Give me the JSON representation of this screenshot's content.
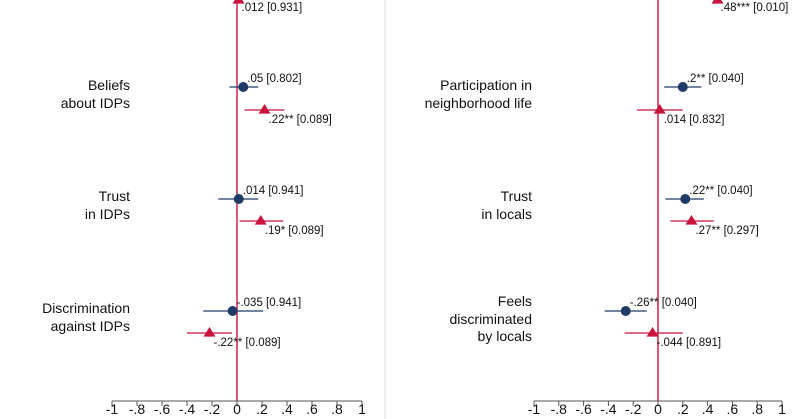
{
  "colors": {
    "estimate_a": "#1f3b66",
    "estimate_b": "#c8143c",
    "divider": "#d9d9d9",
    "axis": "#555555"
  },
  "chart_data": [
    {
      "type": "coefficient_plot",
      "panel": "left",
      "xlim": [
        -1,
        1
      ],
      "ticks": [
        -1,
        -0.8,
        -0.6,
        -0.4,
        -0.2,
        0,
        0.2,
        0.4,
        0.6,
        0.8,
        1
      ],
      "tick_labels": [
        "-1",
        "-.8",
        "-.6",
        "-.4",
        "-.2",
        "0",
        ".2",
        ".4",
        ".6",
        ".8",
        "1"
      ],
      "series": [
        {
          "name": "estimate_a",
          "marker": "circle"
        },
        {
          "name": "estimate_b",
          "marker": "triangle"
        }
      ],
      "groups": [
        {
          "label_lines": [],
          "estimates": [
            {
              "series": "estimate_b",
              "value": 0.012,
              "ci": [
                null,
                null
              ],
              "label": ".012 [0.931]"
            }
          ]
        },
        {
          "label_lines": [
            "Beliefs",
            "about IDPs"
          ],
          "estimates": [
            {
              "series": "estimate_a",
              "value": 0.05,
              "ci": [
                -0.06,
                0.17
              ],
              "label": ".05 [0.802]"
            },
            {
              "series": "estimate_b",
              "value": 0.22,
              "ci": [
                0.06,
                0.38
              ],
              "label": ".22** [0.089]"
            }
          ]
        },
        {
          "label_lines": [
            "Trust",
            "in IDPs"
          ],
          "estimates": [
            {
              "series": "estimate_a",
              "value": 0.014,
              "ci": [
                -0.15,
                0.17
              ],
              "label": ".014 [0.941]"
            },
            {
              "series": "estimate_b",
              "value": 0.19,
              "ci": [
                0.02,
                0.37
              ],
              "label": ".19* [0.089]"
            }
          ]
        },
        {
          "label_lines": [
            "Discrimination",
            "against IDPs"
          ],
          "estimates": [
            {
              "series": "estimate_a",
              "value": -0.035,
              "ci": [
                -0.27,
                0.21
              ],
              "label": "-.035 [0.941]"
            },
            {
              "series": "estimate_b",
              "value": -0.22,
              "ci": [
                -0.4,
                -0.04
              ],
              "label": "-.22** [0.089]"
            }
          ]
        }
      ]
    },
    {
      "type": "coefficient_plot",
      "panel": "right",
      "xlim": [
        -1,
        1
      ],
      "ticks": [
        -1,
        -0.8,
        -0.6,
        -0.4,
        -0.2,
        0,
        0.2,
        0.4,
        0.6,
        0.8,
        1
      ],
      "tick_labels": [
        "-1",
        "-.8",
        "-.6",
        "-.4",
        "-.2",
        "0",
        ".2",
        ".4",
        ".6",
        ".8",
        "1"
      ],
      "series": [
        {
          "name": "estimate_a",
          "marker": "circle"
        },
        {
          "name": "estimate_b",
          "marker": "triangle"
        }
      ],
      "groups": [
        {
          "label_lines": [],
          "estimates": [
            {
              "series": "estimate_b",
              "value": 0.48,
              "ci": [
                null,
                null
              ],
              "label": ".48*** [0.010]"
            }
          ]
        },
        {
          "label_lines": [
            "Participation in",
            "neighborhood life"
          ],
          "estimates": [
            {
              "series": "estimate_a",
              "value": 0.2,
              "ci": [
                0.05,
                0.35
              ],
              "label": ".2** [0.040]"
            },
            {
              "series": "estimate_b",
              "value": 0.014,
              "ci": [
                -0.17,
                0.2
              ],
              "label": ".014 [0.832]"
            }
          ]
        },
        {
          "label_lines": [
            "Trust",
            "in locals"
          ],
          "estimates": [
            {
              "series": "estimate_a",
              "value": 0.22,
              "ci": [
                0.06,
                0.37
              ],
              "label": ".22** [0.040]"
            },
            {
              "series": "estimate_b",
              "value": 0.27,
              "ci": [
                0.1,
                0.45
              ],
              "label": ".27** [0.297]"
            }
          ]
        },
        {
          "label_lines": [
            "Feels",
            "discriminated",
            "by locals"
          ],
          "estimates": [
            {
              "series": "estimate_a",
              "value": -0.26,
              "ci": [
                -0.43,
                -0.09
              ],
              "label": "-.26** [0.040]"
            },
            {
              "series": "estimate_b",
              "value": -0.044,
              "ci": [
                -0.27,
                0.2
              ],
              "label": "-.044 [0.891]"
            }
          ]
        }
      ]
    }
  ]
}
